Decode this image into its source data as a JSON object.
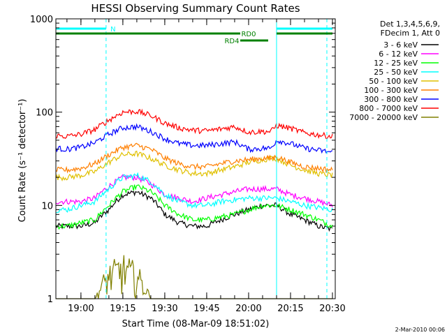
{
  "chart_data": {
    "type": "line",
    "title": "HESSI Observing Summary Count Rates",
    "xlabel": "Start Time (08-Mar-09 18:51:02)",
    "ylabel": "Count Rate (s⁻¹ detector⁻¹)",
    "y_scale": "log",
    "ylim": [
      1,
      1000
    ],
    "xlim": [
      "18:51:02",
      "20:31:00"
    ],
    "x_ticks": [
      "19:00",
      "19:15",
      "19:30",
      "19:45",
      "20:00",
      "20:15",
      "20:30"
    ],
    "y_ticks": [
      "1",
      "10",
      "100",
      "1000"
    ],
    "legend_header": [
      "Det 1,3,4,5,6,9,",
      "FDecim 1, Att 0"
    ],
    "legend_position": "top-right",
    "flags": [
      {
        "label": "N",
        "color": "#00ffff",
        "segments": [
          [
            "18:51",
            "19:09"
          ],
          [
            "20:10",
            "20:30"
          ]
        ]
      },
      {
        "label": "RD0",
        "color": "#008000",
        "segments": [
          [
            "18:51",
            "20:30"
          ]
        ]
      },
      {
        "label": "RD4",
        "color": "#008000",
        "segments": [
          [
            "19:57",
            "20:07"
          ]
        ]
      }
    ],
    "vlines": [
      {
        "time": "19:09",
        "style": "dashed",
        "color": "#00ffff"
      },
      {
        "time": "20:10",
        "style": "solid",
        "color": "#00ffff"
      },
      {
        "time": "20:28",
        "style": "dashed",
        "color": "#00ffff"
      }
    ],
    "x": [
      "18:51",
      "18:55",
      "19:00",
      "19:05",
      "19:10",
      "19:15",
      "19:20",
      "19:25",
      "19:30",
      "19:35",
      "19:40",
      "19:45",
      "19:50",
      "19:55",
      "20:00",
      "20:05",
      "20:08",
      "20:10",
      "20:15",
      "20:20",
      "20:25",
      "20:30"
    ],
    "series": [
      {
        "name": "3 - 6 keV",
        "color": "#000000",
        "values": [
          6,
          6,
          6,
          6.5,
          9,
          13,
          14,
          12,
          8,
          6.5,
          6,
          6,
          7,
          8,
          9,
          10,
          10,
          10,
          8,
          7,
          6,
          5.5
        ]
      },
      {
        "name": "6 - 12 keV",
        "color": "#ff00ff",
        "values": [
          11,
          11,
          11,
          12,
          16,
          20,
          20,
          17,
          13,
          12,
          11,
          12,
          13,
          14,
          15,
          15,
          15,
          15,
          13,
          12,
          11,
          10
        ]
      },
      {
        "name": "12 - 25 keV",
        "color": "#00ff00",
        "values": [
          6,
          6,
          6.5,
          7,
          10,
          14,
          16,
          14,
          10,
          8,
          7,
          7,
          7.5,
          8,
          9,
          10,
          10,
          10,
          9,
          8,
          7,
          6
        ]
      },
      {
        "name": "25 - 50 keV",
        "color": "#00ffff",
        "values": [
          9,
          9,
          10,
          11,
          15,
          20,
          21,
          18,
          13,
          11,
          10,
          10,
          11,
          11.5,
          12,
          12,
          12,
          12,
          11,
          10,
          9.5,
          9
        ]
      },
      {
        "name": "50 - 100 keV",
        "color": "#e0c000",
        "values": [
          20,
          20,
          21,
          23,
          29,
          35,
          36,
          32,
          27,
          24,
          22,
          22,
          24,
          26,
          29,
          31,
          32,
          32,
          27,
          24,
          22,
          21
        ]
      },
      {
        "name": "100 - 300 keV",
        "color": "#ff7f00",
        "values": [
          24,
          24,
          25,
          28,
          35,
          42,
          44,
          40,
          32,
          28,
          26,
          26,
          28,
          30,
          31,
          32,
          32,
          33,
          29,
          26,
          25,
          24
        ]
      },
      {
        "name": "300 - 800 keV",
        "color": "#0000ff",
        "values": [
          41,
          40,
          42,
          47,
          58,
          68,
          70,
          62,
          52,
          46,
          44,
          44,
          46,
          48,
          40,
          41,
          41,
          50,
          46,
          41,
          39,
          37
        ]
      },
      {
        "name": "800 - 7000 keV",
        "color": "#ff0000",
        "values": [
          56,
          55,
          58,
          65,
          82,
          100,
          102,
          92,
          76,
          68,
          64,
          63,
          66,
          70,
          61,
          62,
          62,
          72,
          67,
          60,
          57,
          55
        ]
      },
      {
        "name": "7000 - 20000 keV",
        "color": "#808000",
        "values": [
          1,
          1,
          1,
          1,
          2,
          2.5,
          2,
          1,
          1,
          1,
          1,
          1,
          1,
          1,
          1,
          1,
          1,
          1,
          1,
          1,
          1,
          1
        ]
      }
    ]
  },
  "footer_date": "2-Mar-2010 00:06"
}
